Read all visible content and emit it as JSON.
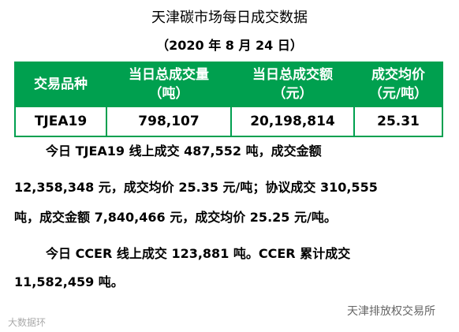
{
  "header": {
    "title": "天津碳市场每日成交数据",
    "date": "（2020 年 8 月 24 日）"
  },
  "table": {
    "header": [
      [
        "交易品种"
      ],
      [
        "当日总成交量",
        "（吨）"
      ],
      [
        "当日总成交额",
        "（元）"
      ],
      [
        "成交均价",
        "（元/吨）"
      ]
    ],
    "rows": [
      [
        "TJEA19",
        "798,107",
        "20,198,814",
        "25.31"
      ]
    ]
  },
  "paragraphs": [
    [
      "今日 TJEA19 线上成交 487,552 吨，成交金额",
      "12,358,348 元，成交均价 25.35 元/吨；协议成交 310,555",
      "吨，成交金额 7,840,466 元，成交均价 25.25 元/吨。"
    ],
    [
      "今日 CCER 线上成交 123,881 吨。CCER 累计成交",
      "11,582,459 吨。"
    ]
  ],
  "watermarks": [
    "大数据环",
    "天津排放权交易所"
  ]
}
